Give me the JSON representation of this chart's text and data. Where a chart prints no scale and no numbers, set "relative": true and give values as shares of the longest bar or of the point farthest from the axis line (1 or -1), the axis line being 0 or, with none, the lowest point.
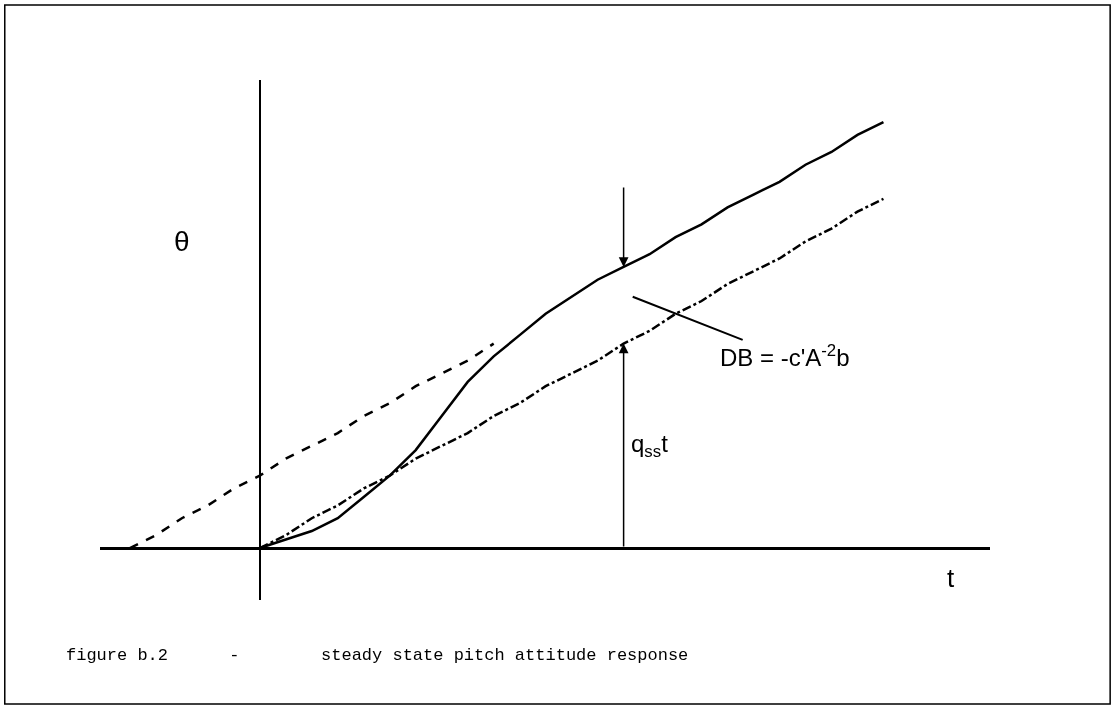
{
  "chart_data": {
    "type": "line",
    "relative": true,
    "xlabel": "t",
    "ylabel": "θ",
    "categories": [
      null,
      null,
      null,
      null,
      null,
      null,
      null,
      null,
      null,
      null,
      null,
      null,
      null,
      null,
      null,
      null,
      null,
      null,
      null,
      null,
      null,
      null,
      null,
      null,
      null,
      null,
      null,
      null,
      null,
      null
    ],
    "series": [
      {
        "color": "#000000",
        "line_style": "solid",
        "values": [
          null,
          null,
          null,
          null,
          null,
          0,
          0.02,
          0.04,
          0.07,
          0.12,
          0.17,
          0.23,
          0.31,
          0.39,
          0.45,
          0.5,
          0.55,
          0.59,
          0.63,
          0.66,
          0.69,
          0.73,
          0.76,
          0.8,
          0.83,
          0.86,
          0.9,
          0.93,
          0.97,
          1
        ]
      },
      {
        "color": "#000000",
        "line_style": "dashed",
        "values": [
          0,
          0.03,
          0.07,
          0.1,
          0.14,
          0.17,
          0.21,
          0.24,
          0.27,
          0.31,
          0.34,
          0.38,
          0.41,
          0.44,
          0.48,
          null,
          null,
          null,
          null,
          null,
          null,
          null,
          null,
          null,
          null,
          null,
          null,
          null,
          null,
          null
        ]
      },
      {
        "color": "#000000",
        "line_style": "dashdot",
        "values": [
          null,
          null,
          null,
          null,
          null,
          0,
          0.03,
          0.07,
          0.1,
          0.14,
          0.17,
          0.21,
          0.24,
          0.27,
          0.31,
          0.34,
          0.38,
          0.41,
          0.44,
          0.48,
          0.51,
          0.55,
          0.58,
          0.62,
          0.65,
          0.68,
          0.72,
          0.75,
          0.79,
          0.82
        ]
      }
    ],
    "annotations": [
      "DB = -c'A$^{-2}$b",
      "q$_{ss}$t",
      "figure b.2      -        steady state pitch attitude response"
    ],
    "marker": "none"
  }
}
